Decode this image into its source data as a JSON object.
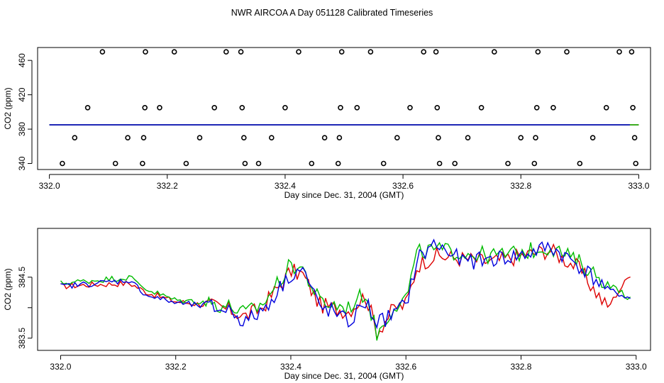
{
  "title": "NWR AIRCOA A  Day 051128  Calibrated Timeseries",
  "colors": {
    "series1": "#dd0000",
    "series2": "#00bb00",
    "series3": "#0000dd",
    "points": "#000000"
  },
  "chart_data": [
    {
      "type": "scatter",
      "title": "",
      "xlabel": "Day since Dec. 31, 2004 (GMT)",
      "ylabel": "CO2 (ppm)",
      "xlim": [
        331.98,
        333.02
      ],
      "ylim": [
        333,
        475
      ],
      "xticks": [
        332.0,
        332.2,
        332.4,
        332.6,
        332.8,
        333.0
      ],
      "xtick_labels": [
        "332.0",
        "332.2",
        "332.4",
        "332.6",
        "332.8",
        "333.0"
      ],
      "yticks": [
        340,
        380,
        420,
        460
      ],
      "ytick_labels": [
        "340",
        "380",
        "420",
        "460"
      ],
      "points": [
        [
          332.022,
          340
        ],
        [
          332.043,
          370
        ],
        [
          332.065,
          405
        ],
        [
          332.09,
          470
        ],
        [
          332.112,
          340
        ],
        [
          332.133,
          370
        ],
        [
          332.158,
          340
        ],
        [
          332.16,
          370
        ],
        [
          332.162,
          405
        ],
        [
          332.163,
          470
        ],
        [
          332.187,
          405
        ],
        [
          332.212,
          470
        ],
        [
          332.232,
          340
        ],
        [
          332.255,
          370
        ],
        [
          332.28,
          405
        ],
        [
          332.3,
          470
        ],
        [
          332.325,
          470
        ],
        [
          332.327,
          405
        ],
        [
          332.33,
          370
        ],
        [
          332.332,
          340
        ],
        [
          332.355,
          340
        ],
        [
          332.377,
          370
        ],
        [
          332.4,
          405
        ],
        [
          332.423,
          470
        ],
        [
          332.445,
          340
        ],
        [
          332.467,
          370
        ],
        [
          332.49,
          340
        ],
        [
          332.492,
          370
        ],
        [
          332.494,
          405
        ],
        [
          332.496,
          470
        ],
        [
          332.522,
          405
        ],
        [
          332.545,
          470
        ],
        [
          332.567,
          340
        ],
        [
          332.59,
          370
        ],
        [
          332.612,
          405
        ],
        [
          332.635,
          470
        ],
        [
          332.656,
          470
        ],
        [
          332.658,
          405
        ],
        [
          332.66,
          370
        ],
        [
          332.662,
          340
        ],
        [
          332.688,
          340
        ],
        [
          332.71,
          370
        ],
        [
          332.733,
          405
        ],
        [
          332.755,
          470
        ],
        [
          332.778,
          340
        ],
        [
          332.8,
          370
        ],
        [
          332.823,
          340
        ],
        [
          332.825,
          370
        ],
        [
          332.827,
          405
        ],
        [
          332.829,
          470
        ],
        [
          332.855,
          405
        ],
        [
          332.878,
          470
        ],
        [
          332.9,
          340
        ],
        [
          332.922,
          370
        ],
        [
          332.945,
          405
        ],
        [
          332.967,
          470
        ],
        [
          332.988,
          470
        ],
        [
          332.99,
          405
        ],
        [
          332.993,
          370
        ],
        [
          332.995,
          340
        ]
      ],
      "series": [
        {
          "name": "red",
          "color": "#dd0000",
          "x": [
            332.0,
            332.5,
            333.0
          ],
          "y": [
            385,
            385,
            385
          ]
        },
        {
          "name": "green",
          "color": "#00bb00",
          "x": [
            332.0,
            332.5,
            333.0
          ],
          "y": [
            385,
            385,
            385
          ]
        },
        {
          "name": "blue",
          "color": "#0000dd",
          "x": [
            332.0,
            332.5,
            332.985
          ],
          "y": [
            385,
            385,
            385
          ]
        }
      ]
    },
    {
      "type": "line",
      "title": "",
      "xlabel": "Day since Dec. 31, 2004 (GMT)",
      "ylabel": "CO2 (ppm)",
      "xlim": [
        331.96,
        333.025
      ],
      "ylim": [
        383.3,
        385.3
      ],
      "xticks": [
        332.0,
        332.2,
        332.4,
        332.6,
        332.8,
        333.0
      ],
      "xtick_labels": [
        "332.0",
        "332.2",
        "332.4",
        "332.6",
        "332.8",
        "333.0"
      ],
      "yticks": [
        383.5,
        384.0,
        384.5
      ],
      "ytick_labels": [
        "383.5",
        "",
        "384.5"
      ],
      "x": [
        332.0,
        332.06,
        332.12,
        332.15,
        332.2,
        332.25,
        332.3,
        332.32,
        332.35,
        332.4,
        332.42,
        332.45,
        332.47,
        332.5,
        332.53,
        332.55,
        332.58,
        332.6,
        332.62,
        332.65,
        332.7,
        332.75,
        332.8,
        332.85,
        332.9,
        332.95,
        332.99
      ],
      "series": [
        {
          "name": "red",
          "color": "#dd0000",
          "y": [
            384.35,
            384.38,
            384.4,
            384.25,
            384.1,
            384.05,
            383.95,
            383.85,
            384.0,
            384.6,
            384.55,
            384.05,
            384.0,
            383.95,
            384.2,
            383.6,
            384.0,
            384.05,
            384.7,
            384.85,
            384.8,
            384.75,
            384.85,
            384.95,
            384.65,
            384.0,
            384.55
          ]
        },
        {
          "name": "green",
          "color": "#00bb00",
          "y": [
            384.4,
            384.45,
            384.5,
            384.3,
            384.12,
            384.1,
            384.0,
            383.9,
            384.05,
            384.7,
            384.65,
            384.1,
            384.05,
            384.0,
            384.25,
            383.55,
            384.05,
            384.15,
            384.9,
            384.95,
            384.9,
            384.85,
            384.9,
            385.0,
            384.75,
            384.4,
            384.15
          ]
        },
        {
          "name": "blue",
          "color": "#0000dd",
          "y": [
            384.35,
            384.4,
            384.45,
            384.2,
            384.08,
            384.02,
            383.95,
            383.75,
            383.95,
            384.55,
            384.65,
            384.0,
            383.95,
            383.75,
            384.1,
            383.75,
            383.9,
            384.05,
            384.8,
            385.05,
            384.75,
            384.8,
            384.85,
            385.0,
            384.7,
            384.3,
            384.15
          ]
        }
      ]
    }
  ]
}
